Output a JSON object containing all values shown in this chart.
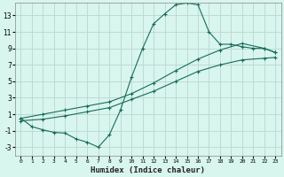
{
  "xlabel": "Humidex (Indice chaleur)",
  "bg_color": "#d8f5ee",
  "grid_color": "#b8d8d0",
  "line_color": "#1a6b5a",
  "xlim": [
    -0.5,
    23.5
  ],
  "ylim": [
    -4.0,
    14.5
  ],
  "xticks": [
    0,
    1,
    2,
    3,
    4,
    5,
    6,
    7,
    8,
    9,
    10,
    11,
    12,
    13,
    14,
    15,
    16,
    17,
    18,
    19,
    20,
    21,
    22,
    23
  ],
  "yticks": [
    -3,
    -1,
    1,
    3,
    5,
    7,
    9,
    11,
    13
  ],
  "curve1_x": [
    0,
    1,
    2,
    3,
    4,
    5,
    6,
    7,
    8,
    9,
    10,
    11,
    12,
    13,
    14,
    15,
    16,
    17,
    18,
    19,
    20,
    21,
    22,
    23
  ],
  "curve1_y": [
    0.5,
    -0.5,
    -0.9,
    -1.2,
    -1.3,
    -2.0,
    -2.4,
    -3.0,
    -1.5,
    1.5,
    5.5,
    9.0,
    12.0,
    13.2,
    14.3,
    14.5,
    14.3,
    11.0,
    9.5,
    9.5,
    9.2,
    9.0,
    9.0,
    8.5
  ],
  "curve2_x": [
    0,
    2,
    4,
    6,
    8,
    10,
    12,
    14,
    16,
    18,
    20,
    22,
    23
  ],
  "curve2_y": [
    0.5,
    1.0,
    1.5,
    2.0,
    2.5,
    3.5,
    4.8,
    6.3,
    7.7,
    8.8,
    9.6,
    9.0,
    8.5
  ],
  "curve3_x": [
    0,
    2,
    4,
    6,
    8,
    10,
    12,
    14,
    16,
    18,
    20,
    22,
    23
  ],
  "curve3_y": [
    0.2,
    0.4,
    0.8,
    1.3,
    1.8,
    2.8,
    3.8,
    5.0,
    6.2,
    7.0,
    7.6,
    7.8,
    7.9
  ]
}
